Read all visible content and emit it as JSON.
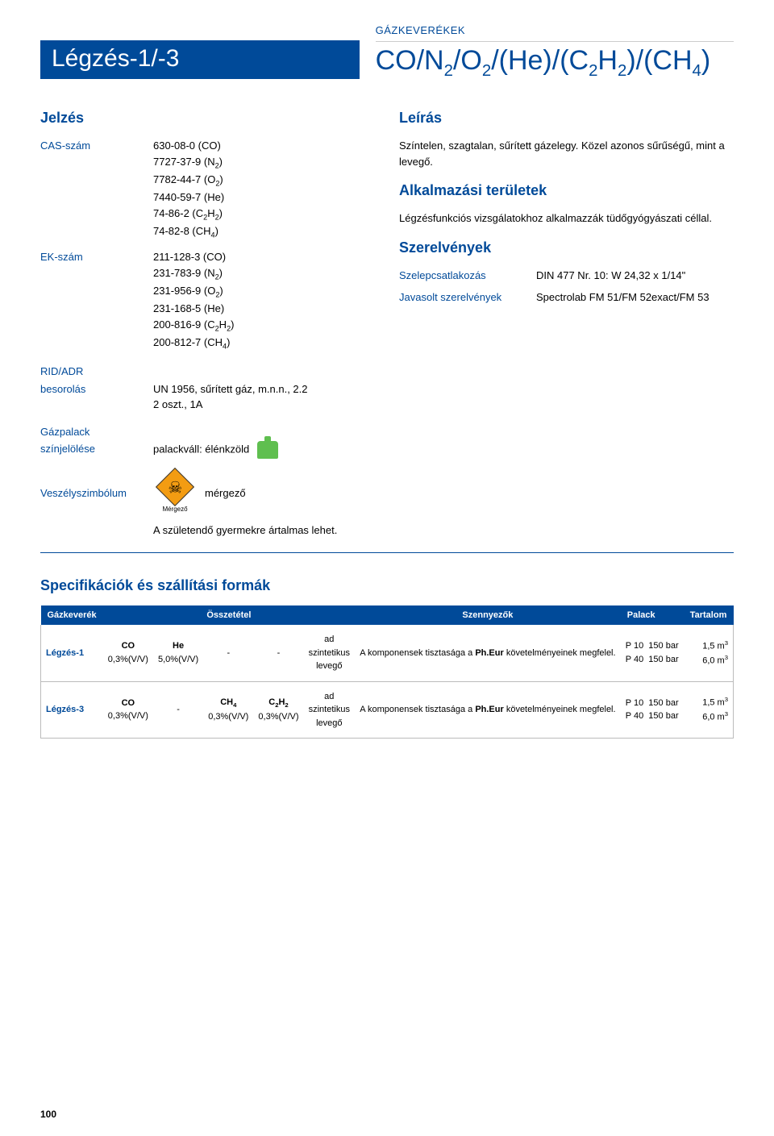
{
  "category": "GÁZKEVERÉKEK",
  "product_title": "Légzés-1/-3",
  "formula_html": "CO/N<sub>2</sub>/O<sub>2</sub>/(He)/(C<sub>2</sub>H<sub>2</sub>)/(CH<sub>4</sub>)",
  "jelzes": {
    "title": "Jelzés",
    "cas_label": "CAS-szám",
    "cas_values": [
      "630-08-0 (CO)",
      "7727-37-9 (N<sub>2</sub>)",
      "7782-44-7 (O<sub>2</sub>)",
      "7440-59-7 (He)",
      "74-86-2 (C<sub>2</sub>H<sub>2</sub>)",
      "74-82-8 (CH<sub>4</sub>)"
    ],
    "ek_label": "EK-szám",
    "ek_values": [
      "211-128-3 (CO)",
      "231-783-9 (N<sub>2</sub>)",
      "231-956-9 (O<sub>2</sub>)",
      "231-168-5 (He)",
      "200-816-9 (C<sub>2</sub>H<sub>2</sub>)",
      "200-812-7 (CH<sub>4</sub>)"
    ],
    "rid_label": "RID/ADR",
    "besorolas_label": "besorolás",
    "besorolas_val": "UN 1956, sűrített gáz, m.n.n., 2.2",
    "besorolas_val2": "2 oszt., 1A",
    "palack_label": "Gázpalack",
    "szinjel_label": "színjelölése",
    "szinjel_val": "palackváll: élénkzöld",
    "veszely_label": "Veszélyszimbólum",
    "veszely_val": "mérgező",
    "mergezo_small": "Mérgező",
    "warning": "A születendő gyermekre ártalmas lehet."
  },
  "leiras": {
    "title": "Leírás",
    "text": "Színtelen, szagtalan, sűrített gázelegy. Közel azonos sűrűségű, mint a levegő.",
    "alk_title": "Alkalmazási területek",
    "alk_text": "Légzésfunkciós vizsgálatokhoz alkalmazzák tüdőgyógyászati céllal.",
    "szer_title": "Szerelvények",
    "szelep_label": "Szelepcsatlakozás",
    "szelep_val": "DIN 477 Nr. 10: W 24,32 x 1/14\"",
    "javasolt_label": "Javasolt szerelvények",
    "javasolt_val": "Spectrolab FM 51/FM 52exact/FM 53"
  },
  "spec": {
    "title": "Specifikációk és szállítási formák",
    "headers": [
      "Gázkeverék",
      "Összetétel",
      "Szennyezők",
      "Palack",
      "Tartalom"
    ],
    "rows": [
      {
        "name": "Légzés-1",
        "c1": "<b>CO</b><br>0,3%(V/V)",
        "c2": "<b>He</b><br>5,0%(V/V)",
        "c3": "-",
        "c4": "-",
        "c5": "ad<br>szintetikus<br>levegő",
        "szeny": "A komponensek tisztasága a <b>Ph.Eur</b> követelményeinek megfelel.",
        "palack": "P 10&nbsp;&nbsp;150 bar<br>P 40&nbsp;&nbsp;150 bar",
        "tart": "1,5 m<sup>3</sup><br>6,0 m<sup>3</sup>"
      },
      {
        "name": "Légzés-3",
        "c1": "<b>CO</b><br>0,3%(V/V)",
        "c2": "-",
        "c3": "<b>CH<sub>4</sub></b><br>0,3%(V/V)",
        "c4": "<b>C<sub>2</sub>H<sub>2</sub></b><br>0,3%(V/V)",
        "c5": "ad<br>szintetikus<br>levegő",
        "szeny": "A komponensek tisztasága a <b>Ph.Eur</b> követelményeinek megfelel.",
        "palack": "P 10&nbsp;&nbsp;150 bar<br>P 40&nbsp;&nbsp;150 bar",
        "tart": "1,5 m<sup>3</sup><br>6,0 m<sup>3</sup>"
      }
    ]
  },
  "page_number": "100",
  "colors": {
    "brand": "#004a99",
    "cylinder": "#5fbf4f",
    "hazard": "#f39c12"
  }
}
